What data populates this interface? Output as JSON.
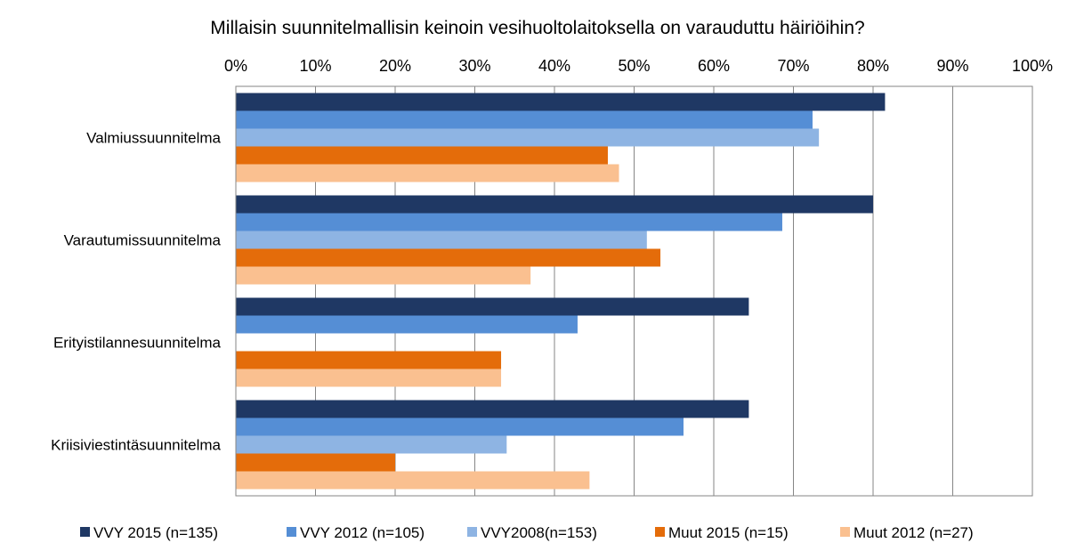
{
  "chart_data": {
    "type": "bar",
    "orientation": "horizontal",
    "title": "Millaisin suunnitelmallisin keinoin vesihuoltolaitoksella on varauduttu  häiriöihin?",
    "xlim": [
      0,
      100
    ],
    "x_ticks": [
      "0%",
      "10%",
      "20%",
      "30%",
      "40%",
      "50%",
      "60%",
      "70%",
      "80%",
      "90%",
      "100%"
    ],
    "x_axis_position": "top",
    "grid": true,
    "legend_position": "bottom",
    "categories": [
      "Valmiussuunnitelma",
      "Varautumissuunnitelma",
      "Erityistilannesuunnitelma",
      "Kriisiviestintäsuunnitelma"
    ],
    "series": [
      {
        "name": "VVY 2015 (n=135)",
        "color": "#1f3864",
        "values": [
          81.5,
          80.0,
          64.4,
          64.4
        ]
      },
      {
        "name": "VVY 2012 (n=105)",
        "color": "#558ed5",
        "values": [
          72.4,
          68.6,
          42.9,
          56.2
        ]
      },
      {
        "name": "VVY2008(n=153)",
        "color": "#8eb4e3",
        "values": [
          73.2,
          51.6,
          null,
          34.0
        ]
      },
      {
        "name": "Muut 2015 (n=15)",
        "color": "#e46c0a",
        "values": [
          46.7,
          53.3,
          33.3,
          20.0
        ]
      },
      {
        "name": "Muut 2012 (n=27)",
        "color": "#fac090",
        "values": [
          48.1,
          37.0,
          33.3,
          44.4
        ]
      }
    ]
  }
}
